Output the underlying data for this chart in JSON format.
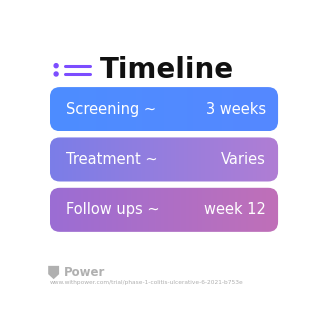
{
  "title": "Timeline",
  "title_fontsize": 20,
  "title_color": "#111111",
  "icon_color_dot": "#7c4dff",
  "icon_color_line": "#7c4dff",
  "background_color": "#ffffff",
  "rows": [
    {
      "label": "Screening ~",
      "value": "3 weeks",
      "color_left": "#4d8dff",
      "color_right": "#5588ff"
    },
    {
      "label": "Treatment ~",
      "value": "Varies",
      "color_left": "#7b7ee8",
      "color_right": "#b07dd4"
    },
    {
      "label": "Follow ups ~",
      "value": "week 12",
      "color_left": "#9b6dd4",
      "color_right": "#c070b8"
    }
  ],
  "footer_logo_text": "Power",
  "footer_url": "www.withpower.com/trial/phase-1-colitis-ulcerative-6-2021-b753e",
  "footer_color": "#b0b0b0",
  "label_fontsize": 10.5,
  "value_fontsize": 10.5
}
